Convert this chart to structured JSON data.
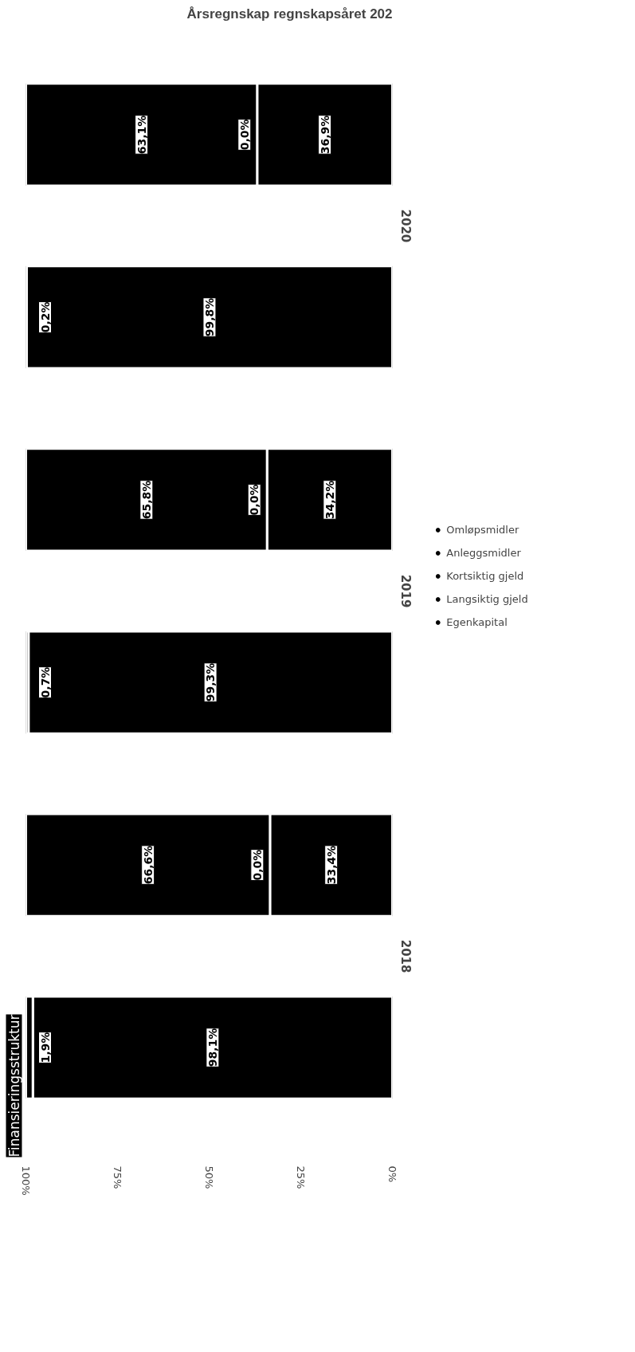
{
  "chart_data": {
    "type": "bar",
    "orientation": "horizontal",
    "stacked": true,
    "title": "Finansieringsstruktur",
    "annotations": [
      "Årsregnskap regnskapsåret 202"
    ],
    "categories": [
      "2020",
      null,
      "2019",
      null,
      "2018",
      null
    ],
    "series": [
      {
        "name": "Omløpsmidler",
        "color": "#000000",
        "values": [
          null,
          99.8,
          null,
          99.3,
          null,
          98.1
        ],
        "value_labels": [
          null,
          "99,8%",
          null,
          "99,3%",
          null,
          "98,1%"
        ]
      },
      {
        "name": "Anleggsmidler",
        "color": "#000000",
        "values": [
          null,
          0.2,
          null,
          0.7,
          null,
          1.9
        ],
        "value_labels": [
          null,
          "0,2%",
          null,
          "0,7%",
          null,
          "1,9%"
        ]
      },
      {
        "name": "Kortsiktig gjeld",
        "color": "#000000",
        "values": [
          36.9,
          null,
          34.2,
          null,
          33.4,
          null
        ],
        "value_labels": [
          "36,9%",
          null,
          "34,2%",
          null,
          "33,4%",
          null
        ]
      },
      {
        "name": "Langsiktig gjeld",
        "color": "#000000",
        "values": [
          0.0,
          null,
          0.0,
          null,
          0.0,
          null
        ],
        "value_labels": [
          "0,0%",
          null,
          "0,0%",
          null,
          "0,0%",
          null
        ]
      },
      {
        "name": "Egenkapital",
        "color": "#000000",
        "values": [
          63.1,
          null,
          65.8,
          null,
          66.6,
          null
        ],
        "value_labels": [
          "63,1%",
          null,
          "65,8%",
          null,
          "66,6%",
          null
        ]
      }
    ],
    "xlim": [
      100,
      0
    ],
    "xticks": [
      {
        "value": 100,
        "label": "100%"
      },
      {
        "value": 75,
        "label": "75%"
      },
      {
        "value": 50,
        "label": "50%"
      },
      {
        "value": 25,
        "label": "25%"
      },
      {
        "value": 0,
        "label": "0%"
      }
    ],
    "grid": false,
    "legend": "right"
  }
}
